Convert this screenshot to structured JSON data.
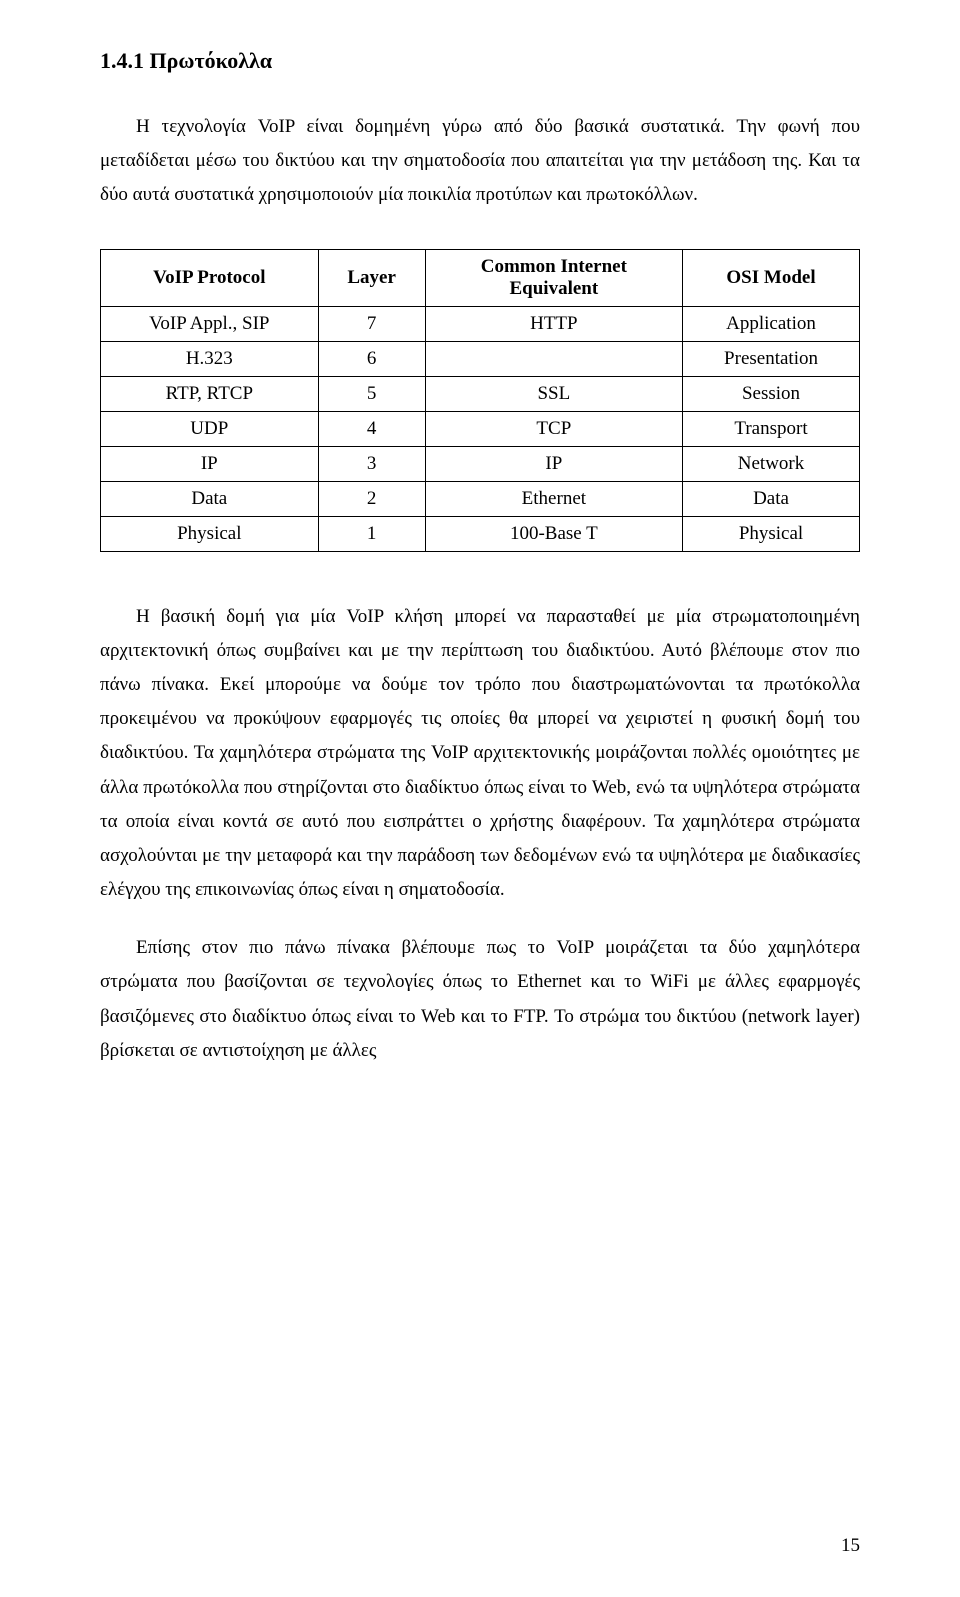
{
  "heading": "1.4.1 Πρωτόκολλα",
  "paragraph1": "Η τεχνολογία VoIP είναι δομημένη γύρω από δύο βασικά συστατικά. Την φωνή που μεταδίδεται μέσω του δικτύου και την σηματοδοσία που απαιτείται για την μετάδοση της. Και τα δύο αυτά συστατικά χρησιμοποιούν μία ποικιλία προτύπων και πρωτοκόλλων.",
  "table": {
    "headers": {
      "col1": "VoIP Protocol",
      "col2": "Layer",
      "col3_line1": "Common Internet",
      "col3_line2": "Equivalent",
      "col4": "OSI Model"
    },
    "rows": [
      {
        "c1": "VoIP Appl., SIP",
        "c2": "7",
        "c3": "HTTP",
        "c4": "Application"
      },
      {
        "c1": "H.323",
        "c2": "6",
        "c3": "",
        "c4": "Presentation"
      },
      {
        "c1": "RTP, RTCP",
        "c2": "5",
        "c3": "SSL",
        "c4": "Session"
      },
      {
        "c1": "UDP",
        "c2": "4",
        "c3": "TCP",
        "c4": "Transport"
      },
      {
        "c1": "IP",
        "c2": "3",
        "c3": "IP",
        "c4": "Network"
      },
      {
        "c1": "Data",
        "c2": "2",
        "c3": "Ethernet",
        "c4": "Data"
      },
      {
        "c1": "Physical",
        "c2": "1",
        "c3": "100-Base T",
        "c4": "Physical"
      }
    ]
  },
  "paragraph2": "Η βασική δομή για μία VoIP κλήση μπορεί να παρασταθεί με μία στρωματοποιημένη αρχιτεκτονική όπως συμβαίνει και με την περίπτωση του διαδικτύου. Αυτό βλέπουμε στον πιο πάνω πίνακα. Εκεί μπορούμε να δούμε τον τρόπο που διαστρωματώνονται τα πρωτόκολλα προκειμένου να προκύψουν εφαρμογές τις οποίες θα μπορεί να χειριστεί η φυσική δομή του διαδικτύου. Τα χαμηλότερα στρώματα της VoIP αρχιτεκτονικής μοιράζονται πολλές ομοιότητες με άλλα πρωτόκολλα που στηρίζονται στο διαδίκτυο όπως είναι το Web, ενώ τα υψηλότερα στρώματα τα οποία είναι κοντά σε αυτό που εισπράττει ο χρήστης διαφέρουν. Τα χαμηλότερα στρώματα ασχολούνται με την μεταφορά και την παράδοση των δεδομένων ενώ τα υψηλότερα με διαδικασίες ελέγχου της επικοινωνίας όπως είναι η σηματοδοσία.",
  "paragraph3": "Επίσης στον πιο πάνω πίνακα βλέπουμε πως το VoIP μοιράζεται τα δύο χαμηλότερα στρώματα που βασίζονται σε τεχνολογίες όπως το Ethernet και το WiFi με άλλες εφαρμογές βασιζόμενες στο διαδίκτυο όπως είναι το Web και το FTP. Το στρώμα του δικτύου (network layer) βρίσκεται σε αντιστοίχηση με άλλες",
  "pageNumber": "15"
}
